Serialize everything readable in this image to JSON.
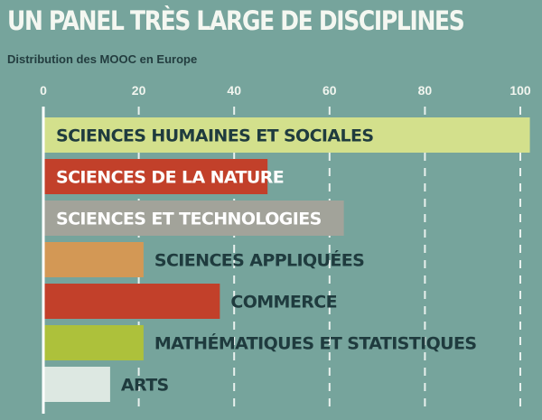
{
  "title": "UN PANEL TRÈS LARGE DE DISCIPLINES",
  "subtitle": "Distribution des MOOC en Europe",
  "colors": {
    "background": "#76a49c",
    "axis": "#ffffff",
    "grid": "#e9f1ee",
    "label_dark": "#1f3b3e",
    "label_light": "#ffffff"
  },
  "chart_data": {
    "type": "bar",
    "orientation": "horizontal",
    "title": "UN PANEL TRÈS LARGE DE DISCIPLINES",
    "subtitle": "Distribution des MOOC en Europe",
    "xlim": [
      0,
      100
    ],
    "xticks": [
      "0",
      "20",
      "40",
      "60",
      "80",
      "100"
    ],
    "grid": true,
    "categories": [
      "SCIENCES HUMAINES ET SOCIALES",
      "SCIENCES DE LA NATURE",
      "SCIENCES ET TECHNOLOGIES",
      "SCIENCES APPLIQUÉES",
      "COMMERCE",
      "MATHÉMATIQUES ET STATISTIQUES",
      "ARTS"
    ],
    "values": [
      102,
      47,
      63,
      21,
      37,
      21,
      14
    ],
    "bar_colors": [
      "#d3e08c",
      "#c2402a",
      "#a2a39a",
      "#d39855",
      "#c2402a",
      "#adc13b",
      "#dde8e2"
    ],
    "label_inside": [
      true,
      true,
      true,
      false,
      false,
      false,
      false
    ],
    "label_colors": [
      "#1f3b3e",
      "#ffffff",
      "#ffffff",
      "#1f3b3e",
      "#1f3b3e",
      "#1f3b3e",
      "#1f3b3e"
    ]
  }
}
